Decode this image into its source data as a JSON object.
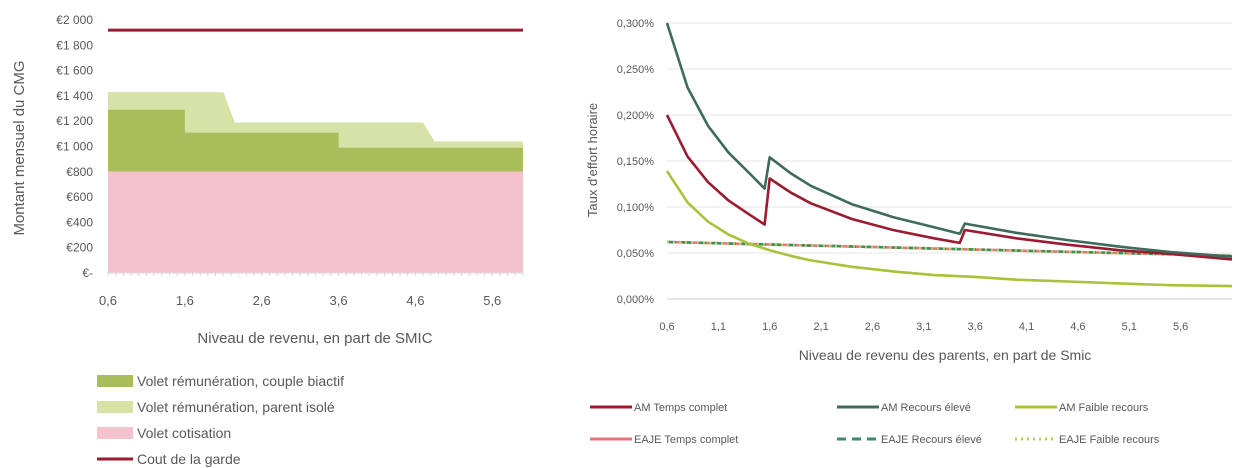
{
  "chart_data": [
    {
      "type": "area",
      "title": "",
      "xlabel": "Niveau de revenu, en part de SMIC",
      "ylabel": "Montant mensuel du CMG",
      "ylim": [
        0,
        2000
      ],
      "yticks": [
        0,
        200,
        400,
        600,
        800,
        1000,
        1200,
        1400,
        1600,
        1800,
        2000
      ],
      "ytick_labels": [
        "€-",
        "€200",
        "€400",
        "€600",
        "€800",
        "€1 000",
        "€1 200",
        "€1 400",
        "€1 600",
        "€1 800",
        "€2 000"
      ],
      "xlim": [
        0.6,
        6.0
      ],
      "xticks": [
        0.6,
        1.6,
        2.6,
        3.6,
        4.6,
        5.6
      ],
      "xtick_labels": [
        "0,6",
        "1,6",
        "2,6",
        "3,6",
        "4,6",
        "5,6"
      ],
      "grid": false,
      "legend_position": "bottom",
      "colors": {
        "couple": "#a9bd5b",
        "isole": "#d6e2a6",
        "cotisation": "#f4c3cd",
        "garde": "#9b1b30"
      },
      "series": [
        {
          "name": "Volet rémunération, couple biactif",
          "kind": "area",
          "x": [
            0.6,
            1.6,
            1.6,
            3.6,
            3.6,
            6.0
          ],
          "y": [
            1290,
            1290,
            1110,
            1110,
            990,
            990
          ]
        },
        {
          "name": "Volet rémunération, parent isolé",
          "kind": "area",
          "x": [
            0.6,
            2.1,
            2.25,
            4.7,
            4.85,
            6.0
          ],
          "y": [
            1430,
            1430,
            1190,
            1190,
            1040,
            1040
          ]
        },
        {
          "name": "Volet cotisation",
          "kind": "area",
          "x": [
            0.6,
            6.0
          ],
          "y": [
            800,
            800
          ]
        },
        {
          "name": "Cout de la garde",
          "kind": "line",
          "x": [
            0.6,
            6.0
          ],
          "y": [
            1920,
            1920
          ]
        }
      ]
    },
    {
      "type": "line",
      "title": "",
      "xlabel": "Niveau de revenu des parents, en part de Smic",
      "ylabel": "Taux d'effort horaire",
      "ylim": [
        0,
        0.3
      ],
      "yticks": [
        0,
        0.05,
        0.1,
        0.15,
        0.2,
        0.25,
        0.3
      ],
      "ytick_labels": [
        "0,000%",
        "0,050%",
        "0,100%",
        "0,150%",
        "0,200%",
        "0,250%",
        "0,300%"
      ],
      "xlim": [
        0.6,
        6.1
      ],
      "xticks": [
        0.6,
        1.1,
        1.6,
        2.1,
        2.6,
        3.1,
        3.6,
        4.1,
        4.6,
        5.1,
        5.6
      ],
      "xtick_labels": [
        "0,6",
        "1,1",
        "1,6",
        "2,1",
        "2,6",
        "3,1",
        "3,6",
        "4,1",
        "4,6",
        "5,1",
        "5,6"
      ],
      "grid": true,
      "legend_position": "bottom",
      "series": [
        {
          "name": "AM Temps complet",
          "color": "#9b1b30",
          "dash": "solid",
          "x": [
            0.6,
            0.8,
            1.0,
            1.2,
            1.4,
            1.55,
            1.6,
            1.8,
            2.0,
            2.4,
            2.8,
            3.2,
            3.45,
            3.5,
            4.0,
            4.5,
            5.0,
            5.5,
            6.1
          ],
          "y": [
            0.2,
            0.155,
            0.127,
            0.107,
            0.092,
            0.081,
            0.131,
            0.116,
            0.104,
            0.087,
            0.075,
            0.066,
            0.061,
            0.075,
            0.066,
            0.059,
            0.053,
            0.049,
            0.043
          ]
        },
        {
          "name": "AM Recours élevé",
          "color": "#3e6b5c",
          "dash": "solid",
          "x": [
            0.6,
            0.8,
            1.0,
            1.2,
            1.4,
            1.55,
            1.6,
            1.8,
            2.0,
            2.4,
            2.8,
            3.2,
            3.45,
            3.5,
            4.0,
            4.5,
            5.0,
            5.5,
            6.1
          ],
          "y": [
            0.3,
            0.23,
            0.188,
            0.159,
            0.137,
            0.12,
            0.154,
            0.137,
            0.123,
            0.103,
            0.089,
            0.078,
            0.071,
            0.082,
            0.072,
            0.064,
            0.057,
            0.051,
            0.046
          ]
        },
        {
          "name": "AM Faible recours",
          "color": "#a8c23a",
          "dash": "solid",
          "x": [
            0.6,
            0.8,
            1.0,
            1.2,
            1.4,
            1.6,
            1.8,
            2.0,
            2.4,
            2.8,
            3.2,
            3.6,
            4.0,
            4.5,
            5.0,
            5.5,
            6.1
          ],
          "y": [
            0.139,
            0.105,
            0.084,
            0.07,
            0.06,
            0.053,
            0.047,
            0.042,
            0.035,
            0.03,
            0.026,
            0.024,
            0.021,
            0.019,
            0.017,
            0.015,
            0.014
          ]
        },
        {
          "name": "EAJE Temps complet",
          "color": "#e8737f",
          "dash": "solid",
          "x": [
            0.6,
            6.1
          ],
          "y": [
            0.062,
            0.047
          ]
        },
        {
          "name": "EAJE Recours élevé",
          "color": "#3e8a6e",
          "dash": "dashed",
          "x": [
            0.6,
            6.1
          ],
          "y": [
            0.062,
            0.047
          ]
        },
        {
          "name": "EAJE Faible recours",
          "color": "#b7cf55",
          "dash": "dotted",
          "x": [
            0.6,
            6.1
          ],
          "y": [
            0.062,
            0.047
          ]
        }
      ]
    }
  ]
}
